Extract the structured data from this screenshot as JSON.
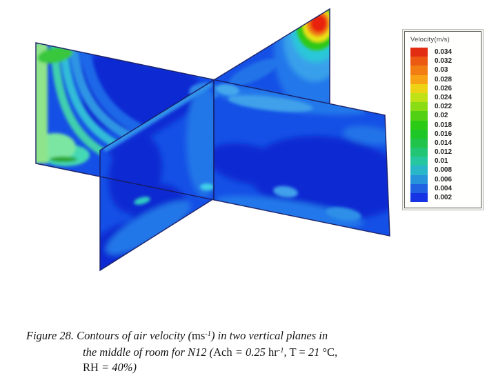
{
  "figure": {
    "legend": {
      "title": "Velocity(m/s)",
      "entries": [
        {
          "label": "0.034",
          "color": "#e32d12"
        },
        {
          "label": "0.032",
          "color": "#eb5912"
        },
        {
          "label": "0.03",
          "color": "#f27d13"
        },
        {
          "label": "0.028",
          "color": "#f7a315"
        },
        {
          "label": "0.026",
          "color": "#edd314"
        },
        {
          "label": "0.024",
          "color": "#bfe116"
        },
        {
          "label": "0.022",
          "color": "#8adc15"
        },
        {
          "label": "0.02",
          "color": "#52d114"
        },
        {
          "label": "0.018",
          "color": "#2aca15"
        },
        {
          "label": "0.016",
          "color": "#1fc628"
        },
        {
          "label": "0.014",
          "color": "#20c44b"
        },
        {
          "label": "0.012",
          "color": "#22c573"
        },
        {
          "label": "0.01",
          "color": "#26c7a0"
        },
        {
          "label": "0.008",
          "color": "#29b6c9"
        },
        {
          "label": "0.006",
          "color": "#2793da"
        },
        {
          "label": "0.004",
          "color": "#2162e2"
        },
        {
          "label": "0.002",
          "color": "#1633e4"
        }
      ]
    },
    "caption": {
      "lines": [
        {
          "segments": [
            {
              "text": "Figure 28. Contours of air velocity (",
              "style": "italic"
            },
            {
              "text": "ms",
              "style": "roman"
            },
            {
              "text": "-1",
              "style": "italic-sup"
            },
            {
              "text": ") in two vertical planes in",
              "style": "italic"
            }
          ]
        },
        {
          "segments": [
            {
              "text": "the middle of room for N12 (",
              "style": "italic"
            },
            {
              "text": "Ach",
              "style": "roman"
            },
            {
              "text": " = 0.25 ",
              "style": "italic"
            },
            {
              "text": "hr",
              "style": "roman"
            },
            {
              "text": "-1",
              "style": "italic-sup"
            },
            {
              "text": ", T = ",
              "style": "roman"
            },
            {
              "text": "21",
              "style": "italic"
            },
            {
              "text": " °C,",
              "style": "roman"
            }
          ]
        },
        {
          "segments": [
            {
              "text": "RH",
              "style": "roman"
            },
            {
              "text": " = 40%)",
              "style": "italic"
            }
          ]
        }
      ]
    }
  },
  "chart_data": {
    "type": "heatmap",
    "subtype": "cfd-contour-plot",
    "title": "Contours of air velocity in two vertical planes in the middle of room for N12",
    "figure_number": "Figure 28",
    "legend_title": "Velocity(m/s)",
    "units": "m/s",
    "levels": [
      0.034,
      0.032,
      0.03,
      0.028,
      0.026,
      0.024,
      0.022,
      0.02,
      0.018,
      0.016,
      0.014,
      0.012,
      0.01,
      0.008,
      0.006,
      0.004,
      0.002
    ],
    "level_colors": [
      "#e32d12",
      "#eb5912",
      "#f27d13",
      "#f7a315",
      "#edd314",
      "#bfe116",
      "#8adc15",
      "#52d114",
      "#2aca15",
      "#1fc628",
      "#20c44b",
      "#22c573",
      "#26c7a0",
      "#29b6c9",
      "#2793da",
      "#2162e2",
      "#1633e4"
    ],
    "case": "N12",
    "conditions": {
      "Ach": "0.25 hr-1",
      "T": "21 °C",
      "RH": "40%"
    },
    "legend_position": "right",
    "notes": "Two intersecting vertical planes rendered in 3D perspective. Bulk of both planes is low velocity (0.002-0.008 m/s, blue). A high-velocity inlet jet reaching 0.034 m/s (red core with orange/yellow/green/cyan rings) sits at the top-right corner of the rear plane. Elevated velocities (~0.012-0.024 m/s, green/cyan band) run along the left edge of the left plane."
  },
  "colors": {
    "base_blue": "#1550e6",
    "deep_blue": "#0a2ad2",
    "dodger_blue": "#2277ea",
    "sky_blue": "#3fa0ea",
    "cyan": "#2cc8d8",
    "teal": "#3fcfae",
    "pale_green": "#8fe48b",
    "green": "#38c73c",
    "yellow": "#e8e414",
    "orange": "#f07d12",
    "red": "#e82310",
    "plane_edge": "#161a60"
  }
}
